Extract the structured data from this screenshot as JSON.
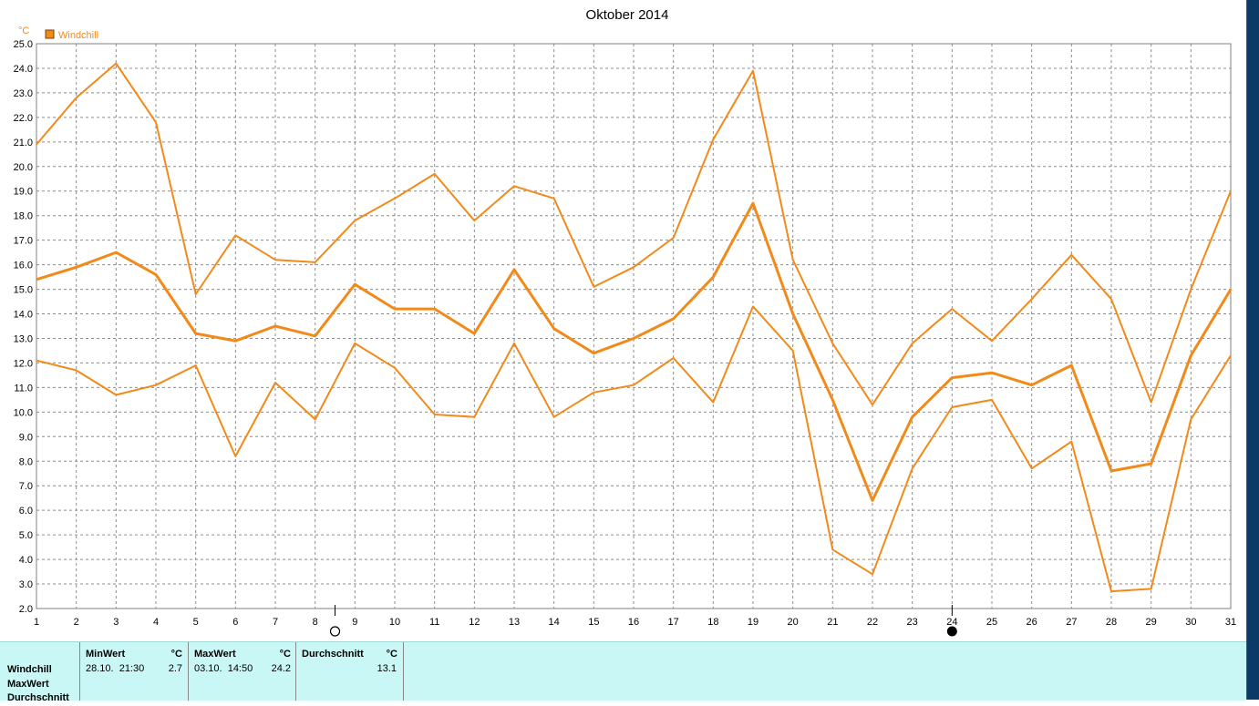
{
  "chart_data": {
    "type": "line",
    "title": "Oktober 2014",
    "yunit": "°C",
    "legend": "Windchill",
    "xlabels": [
      "1",
      "2",
      "3",
      "4",
      "5",
      "6",
      "7",
      "8",
      "9",
      "10",
      "11",
      "12",
      "13",
      "14",
      "15",
      "16",
      "17",
      "18",
      "19",
      "20",
      "21",
      "22",
      "23",
      "24",
      "25",
      "26",
      "27",
      "28",
      "29",
      "30",
      "31"
    ],
    "ylim": [
      2.0,
      25.0
    ],
    "yticks": [
      "2.0",
      "3.0",
      "4.0",
      "5.0",
      "6.0",
      "7.0",
      "8.0",
      "9.0",
      "10.0",
      "11.0",
      "12.0",
      "13.0",
      "14.0",
      "15.0",
      "16.0",
      "17.0",
      "18.0",
      "19.0",
      "20.0",
      "21.0",
      "22.0",
      "23.0",
      "24.0",
      "25.0"
    ],
    "grid": true,
    "legend_position": "top-left",
    "color": "#f28a1a",
    "moon_phases": [
      {
        "day": 8.5,
        "phase": "full-moon"
      },
      {
        "day": 24,
        "phase": "new-moon"
      }
    ],
    "series": [
      {
        "role": "max",
        "values": [
          20.9,
          22.8,
          24.2,
          21.8,
          14.8,
          17.2,
          16.2,
          16.1,
          17.8,
          18.7,
          19.7,
          17.8,
          19.2,
          18.7,
          15.1,
          15.9,
          17.1,
          21.1,
          23.9,
          16.2,
          12.8,
          10.3,
          12.8,
          14.2,
          12.9,
          14.6,
          16.4,
          14.6,
          10.4,
          15.0,
          19.0
        ]
      },
      {
        "role": "avg",
        "values": [
          15.4,
          15.9,
          16.5,
          15.6,
          13.2,
          12.9,
          13.5,
          13.1,
          15.2,
          14.2,
          14.2,
          13.2,
          15.8,
          13.4,
          12.4,
          13.0,
          13.8,
          15.5,
          18.5,
          14.0,
          10.5,
          6.4,
          9.8,
          11.4,
          11.6,
          11.1,
          11.9,
          7.6,
          7.9,
          12.3,
          15.0
        ]
      },
      {
        "role": "min",
        "values": [
          12.1,
          11.7,
          10.7,
          11.1,
          11.9,
          8.2,
          11.2,
          9.7,
          12.8,
          11.8,
          9.9,
          9.8,
          12.8,
          9.8,
          10.8,
          11.1,
          12.2,
          10.4,
          14.3,
          12.5,
          4.4,
          3.4,
          7.7,
          10.2,
          10.5,
          7.7,
          8.8,
          2.7,
          2.8,
          9.7,
          12.3
        ]
      }
    ]
  },
  "table": {
    "row_labels": [
      "Windchill",
      "MaxWert",
      "Durchschnitt"
    ],
    "min_header": "MinWert",
    "min_unit": "°C",
    "min_date": "28.10.  21:30",
    "min_value": "2.7",
    "max_header": "MaxWert",
    "max_unit": "°C",
    "max_date": "03.10.  14:50",
    "max_value": "24.2",
    "avg_header": "Durchschnitt",
    "avg_unit": "°C",
    "avg_value": "13.1"
  }
}
